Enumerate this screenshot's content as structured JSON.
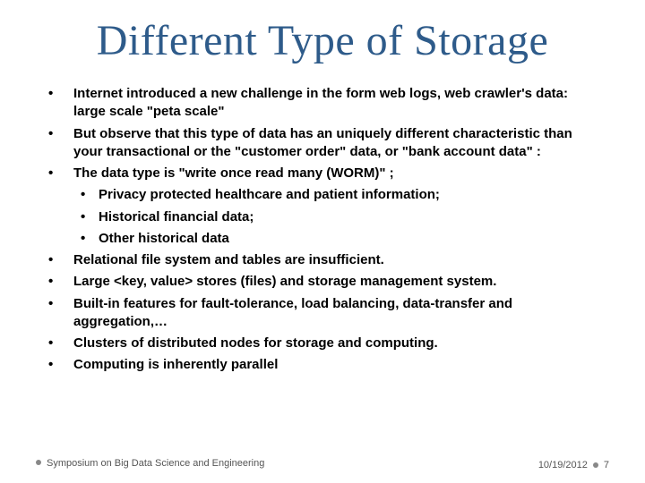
{
  "title": "Different Type of Storage",
  "title_color": "#2e5b8a",
  "title_fontsize": 48,
  "body_fontsize": 15,
  "body_weight": 700,
  "bullets": [
    {
      "text": "Internet introduced a new challenge in the form web logs, web crawler's data: large scale \"peta scale\""
    },
    {
      "text": "But observe that this type of data has an uniquely different characteristic than your transactional or the \"customer order\" data, or \"bank account data\" :"
    },
    {
      "text": " The data type  is \"write once read many (WORM)\" ;",
      "sub": [
        {
          "text": "Privacy protected healthcare and patient information;"
        },
        {
          "text": "Historical financial data;"
        },
        {
          "text": "Other historical data"
        }
      ]
    },
    {
      "text": "Relational file system and tables are insufficient."
    },
    {
      "text": "Large <key, value> stores (files) and storage management system."
    },
    {
      "text": "Built-in features for fault-tolerance, load balancing, data-transfer  and aggregation,…"
    },
    {
      "text": "Clusters of distributed nodes for storage and computing."
    },
    {
      "text": "Computing is inherently parallel"
    }
  ],
  "footer": {
    "left": "Symposium on Big Data Science and Engineering",
    "date": "10/19/2012",
    "page": "7"
  },
  "footer_fontsize": 11,
  "footer_color": "#555555",
  "dot_color": "#888888",
  "background_color": "#ffffff"
}
